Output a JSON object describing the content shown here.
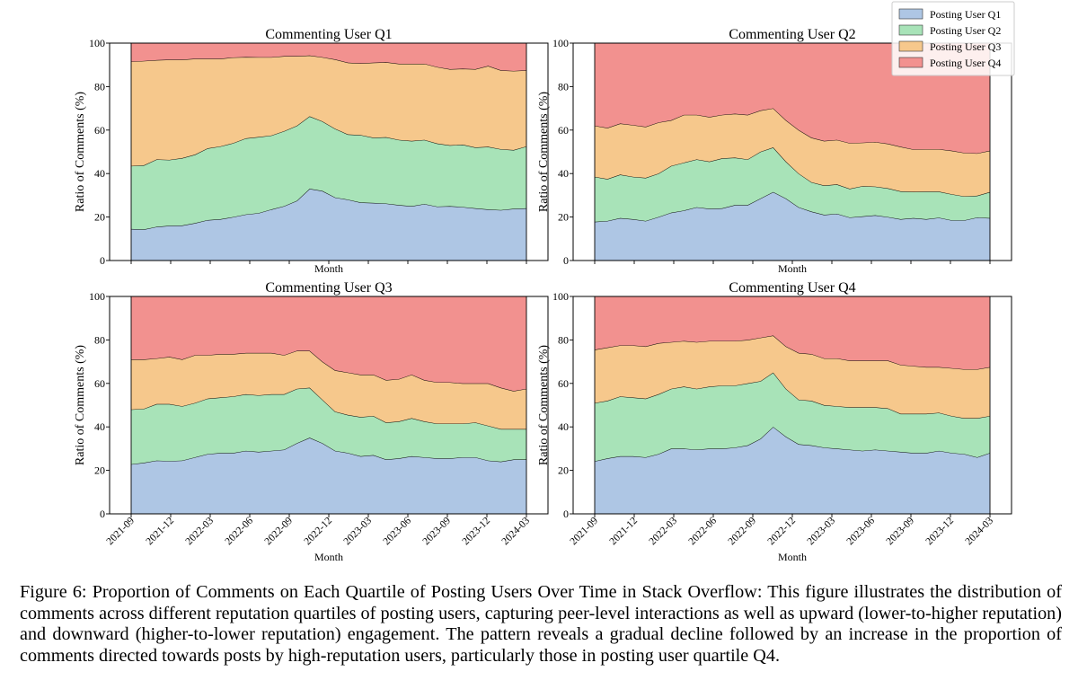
{
  "figure": {
    "caption_label": "Figure 6:",
    "caption_text": "Proportion of Comments on Each Quartile of Posting Users Over Time in Stack Overflow: This figure illustrates the distribution of comments across different reputation quartiles of posting users, capturing peer-level interactions as well as upward (lower-to-higher reputation) and downward (higher-to-lower reputation) engagement. The pattern reveals a gradual decline followed by an increase in the proportion of comments directed towards posts by high-reputation users, particularly those in posting user quartile Q4."
  },
  "colors": {
    "Posting User Q1": "#aec6e4",
    "Posting User Q2": "#a8e3b8",
    "Posting User Q3": "#f6c88c",
    "Posting User Q4": "#f2918f"
  },
  "chart_data": [
    {
      "type": "area",
      "stacked": true,
      "title": "Commenting User Q1",
      "xlabel": "Month",
      "ylabel": "Ratio of Comments (%)",
      "ylim": [
        0,
        100
      ],
      "yticks": [
        0,
        20,
        40,
        60,
        80,
        100
      ],
      "xticks": [
        "2021-09",
        "2021-12",
        "2022-03",
        "2022-06",
        "2022-09",
        "2022-12",
        "2023-03",
        "2023-06",
        "2023-09",
        "2023-12",
        "2024-03"
      ],
      "show_xtick_labels": false,
      "legend": "top-right",
      "series": [
        {
          "name": "Posting User Q1",
          "values": [
            14.5,
            14.3,
            15.5,
            16.0,
            16.1,
            17.2,
            18.6,
            19.0,
            20.0,
            21.2,
            21.8,
            23.5,
            25.0,
            27.5,
            33.0,
            32.0,
            29.0,
            28.0,
            26.7,
            26.5,
            26.2,
            25.5,
            25.0,
            26.0,
            24.8,
            25.0,
            24.6,
            24.0,
            23.5,
            23.2,
            23.8,
            24.0
          ]
        },
        {
          "name": "Posting User Q2",
          "values": [
            29.0,
            29.5,
            31.0,
            30.3,
            31.0,
            31.5,
            33.0,
            33.5,
            34.0,
            35.0,
            35.0,
            34.0,
            34.5,
            34.5,
            33.3,
            32.0,
            31.6,
            30.0,
            31.0,
            30.0,
            30.5,
            30.0,
            30.0,
            29.5,
            29.0,
            28.0,
            28.7,
            28.0,
            28.8,
            28.0,
            27.0,
            28.5
          ]
        },
        {
          "name": "Posting User Q3",
          "values": [
            48.0,
            48.0,
            45.7,
            46.1,
            45.3,
            44.1,
            41.2,
            40.3,
            39.4,
            37.4,
            36.7,
            36.0,
            34.5,
            32.0,
            28.0,
            29.5,
            31.9,
            33.0,
            33.0,
            34.5,
            34.5,
            35.0,
            35.5,
            35.0,
            35.2,
            35.0,
            34.9,
            36.0,
            37.2,
            36.3,
            36.4,
            35.0
          ]
        },
        {
          "name": "Posting User Q4",
          "values": [
            8.5,
            8.2,
            7.8,
            7.6,
            7.6,
            7.2,
            7.2,
            7.2,
            6.6,
            6.4,
            6.5,
            6.5,
            6.0,
            6.0,
            5.7,
            6.5,
            7.5,
            9.0,
            9.3,
            9.0,
            8.8,
            9.5,
            9.5,
            9.5,
            11.0,
            12.0,
            11.8,
            12.0,
            10.5,
            12.5,
            12.8,
            12.5
          ]
        }
      ]
    },
    {
      "type": "area",
      "stacked": true,
      "title": "Commenting User Q2",
      "xlabel": "Month",
      "ylabel": "Ratio of Comments (%)",
      "ylim": [
        0,
        100
      ],
      "yticks": [
        0,
        20,
        40,
        60,
        80,
        100
      ],
      "xticks": [
        "2021-09",
        "2021-12",
        "2022-03",
        "2022-06",
        "2022-09",
        "2022-12",
        "2023-03",
        "2023-06",
        "2023-09",
        "2023-12",
        "2024-03"
      ],
      "show_xtick_labels": false,
      "series": [
        {
          "name": "Posting User Q1",
          "values": [
            17.8,
            18.2,
            19.5,
            19.0,
            18.2,
            20.0,
            22.0,
            23.0,
            24.5,
            23.8,
            24.0,
            25.5,
            25.5,
            28.5,
            31.5,
            28.5,
            24.5,
            22.5,
            21.0,
            21.5,
            19.8,
            20.3,
            20.8,
            20.0,
            19.0,
            19.5,
            19.0,
            19.7,
            18.5,
            18.5,
            19.8,
            19.5
          ]
        },
        {
          "name": "Posting User Q2",
          "values": [
            20.7,
            19.3,
            20.0,
            19.5,
            19.8,
            20.0,
            21.5,
            22.0,
            22.0,
            21.7,
            23.0,
            21.8,
            21.0,
            21.5,
            20.5,
            17.0,
            15.5,
            13.5,
            13.5,
            13.5,
            13.2,
            13.9,
            13.2,
            13.2,
            12.8,
            12.1,
            12.7,
            12.0,
            12.0,
            11.0,
            10.0,
            12.0
          ]
        },
        {
          "name": "Posting User Q3",
          "values": [
            23.5,
            23.5,
            23.5,
            23.8,
            23.5,
            23.5,
            21.0,
            22.0,
            20.5,
            20.5,
            20.0,
            20.2,
            20.5,
            19.0,
            18.0,
            19.0,
            20.0,
            20.5,
            20.5,
            20.5,
            21.0,
            20.0,
            20.5,
            20.5,
            20.5,
            19.5,
            19.5,
            19.5,
            20.0,
            20.0,
            19.5,
            19.0
          ]
        },
        {
          "name": "Posting User Q4",
          "values": [
            38.0,
            39.0,
            37.0,
            37.7,
            38.5,
            36.5,
            35.5,
            33.0,
            33.0,
            34.0,
            33.0,
            32.5,
            33.0,
            31.0,
            30.0,
            35.5,
            40.0,
            43.5,
            45.0,
            44.5,
            46.0,
            45.8,
            45.5,
            46.3,
            47.7,
            48.9,
            48.8,
            48.8,
            49.5,
            50.5,
            50.7,
            49.5
          ]
        }
      ]
    },
    {
      "type": "area",
      "stacked": true,
      "title": "Commenting User Q3",
      "xlabel": "Month",
      "ylabel": "Ratio of Comments (%)",
      "ylim": [
        0,
        100
      ],
      "yticks": [
        0,
        20,
        40,
        60,
        80,
        100
      ],
      "xticks": [
        "2021-09",
        "2021-12",
        "2022-03",
        "2022-06",
        "2022-09",
        "2022-12",
        "2023-03",
        "2023-06",
        "2023-09",
        "2023-12",
        "2024-03"
      ],
      "show_xtick_labels": true,
      "series": [
        {
          "name": "Posting User Q1",
          "values": [
            22.8,
            23.5,
            24.5,
            24.3,
            24.5,
            26.0,
            27.5,
            28.0,
            28.0,
            29.0,
            28.5,
            29.0,
            29.5,
            32.5,
            35.0,
            32.5,
            29.0,
            28.0,
            26.5,
            27.0,
            25.0,
            25.5,
            26.5,
            26.0,
            25.5,
            25.5,
            26.0,
            26.0,
            24.5,
            24.0,
            25.0,
            25.0
          ]
        },
        {
          "name": "Posting User Q2",
          "values": [
            25.2,
            24.8,
            26.0,
            26.2,
            25.0,
            25.0,
            25.5,
            25.5,
            26.0,
            26.0,
            26.0,
            26.0,
            25.5,
            25.0,
            23.0,
            20.0,
            18.0,
            17.5,
            18.0,
            18.0,
            17.0,
            17.0,
            17.5,
            16.5,
            16.0,
            16.0,
            15.5,
            16.0,
            16.0,
            15.0,
            14.0,
            14.0
          ]
        },
        {
          "name": "Posting User Q3",
          "values": [
            23.0,
            22.7,
            21.0,
            21.7,
            21.5,
            22.0,
            20.0,
            20.0,
            19.5,
            19.0,
            19.5,
            19.0,
            18.0,
            17.5,
            17.0,
            17.5,
            19.0,
            19.5,
            19.5,
            19.0,
            19.5,
            19.5,
            20.0,
            19.0,
            19.0,
            19.0,
            18.5,
            18.0,
            19.5,
            19.0,
            17.5,
            18.5
          ]
        },
        {
          "name": "Posting User Q4",
          "values": [
            29.0,
            29.0,
            28.5,
            27.8,
            29.0,
            27.0,
            27.0,
            26.5,
            26.5,
            26.0,
            26.0,
            26.0,
            27.0,
            25.0,
            25.0,
            30.0,
            34.0,
            35.0,
            36.0,
            36.0,
            38.5,
            38.0,
            36.0,
            38.5,
            39.5,
            39.5,
            40.0,
            40.0,
            40.0,
            42.0,
            43.5,
            42.5
          ]
        }
      ]
    },
    {
      "type": "area",
      "stacked": true,
      "title": "Commenting User Q4",
      "xlabel": "Month",
      "ylabel": "Ratio of Comments (%)",
      "ylim": [
        0,
        100
      ],
      "yticks": [
        0,
        20,
        40,
        60,
        80,
        100
      ],
      "xticks": [
        "2021-09",
        "2021-12",
        "2022-03",
        "2022-06",
        "2022-09",
        "2022-12",
        "2023-03",
        "2023-06",
        "2023-09",
        "2023-12",
        "2024-03"
      ],
      "show_xtick_labels": true,
      "series": [
        {
          "name": "Posting User Q1",
          "values": [
            24.2,
            25.5,
            26.5,
            26.5,
            26.0,
            27.5,
            30.0,
            30.0,
            29.5,
            30.0,
            30.0,
            30.5,
            31.5,
            34.5,
            40.0,
            35.5,
            32.0,
            31.5,
            30.5,
            30.0,
            29.5,
            29.0,
            29.5,
            29.0,
            28.5,
            28.0,
            28.0,
            29.0,
            28.0,
            27.5,
            26.0,
            28.0
          ]
        },
        {
          "name": "Posting User Q2",
          "values": [
            26.8,
            26.5,
            27.5,
            27.0,
            27.0,
            27.5,
            27.5,
            28.5,
            28.0,
            28.5,
            29.0,
            28.5,
            28.5,
            26.5,
            25.0,
            22.0,
            20.5,
            20.5,
            19.5,
            19.5,
            19.5,
            20.0,
            19.5,
            19.5,
            17.5,
            18.0,
            18.0,
            17.5,
            17.0,
            16.5,
            18.0,
            17.0
          ]
        },
        {
          "name": "Posting User Q3",
          "values": [
            24.5,
            24.5,
            23.5,
            24.0,
            24.0,
            23.5,
            21.5,
            21.0,
            21.5,
            21.0,
            20.5,
            20.5,
            20.0,
            20.0,
            17.0,
            19.5,
            21.5,
            21.5,
            21.5,
            22.0,
            21.5,
            21.5,
            21.5,
            22.0,
            22.5,
            22.0,
            21.5,
            21.0,
            22.0,
            22.5,
            22.5,
            22.5
          ]
        },
        {
          "name": "Posting User Q4",
          "values": [
            24.5,
            23.5,
            22.5,
            22.5,
            23.0,
            21.5,
            21.0,
            20.5,
            21.0,
            20.5,
            20.5,
            20.5,
            20.0,
            19.0,
            18.0,
            23.0,
            26.0,
            26.5,
            28.5,
            28.5,
            29.5,
            29.5,
            29.5,
            29.5,
            31.5,
            32.0,
            32.5,
            32.5,
            33.0,
            33.5,
            33.5,
            32.5
          ]
        }
      ]
    }
  ]
}
